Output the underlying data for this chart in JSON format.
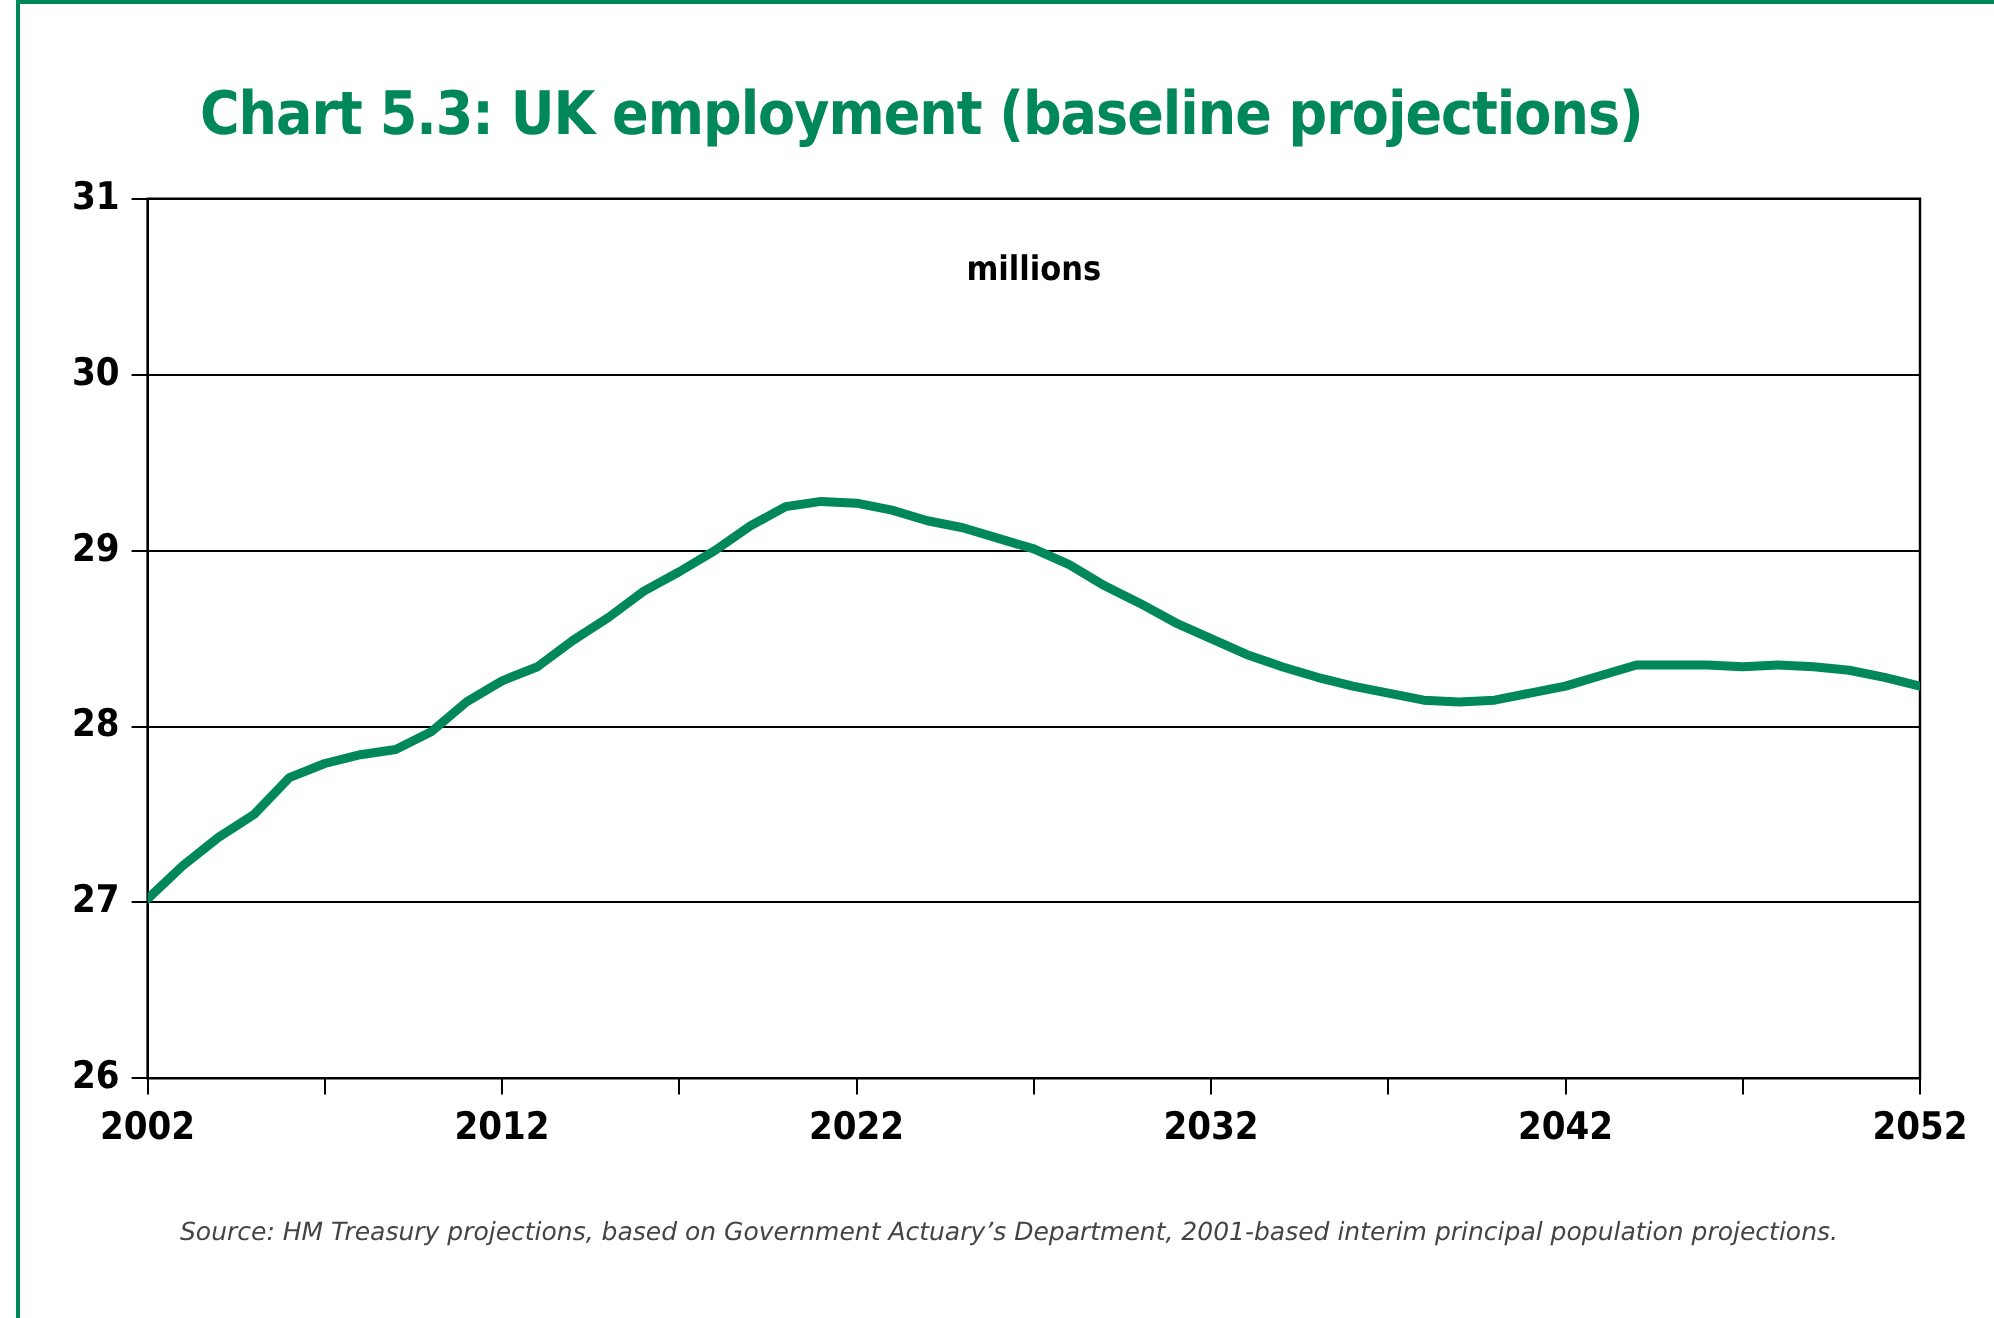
{
  "chart_data": {
    "type": "line",
    "title": "Chart 5.3: UK employment (baseline projections)",
    "ylabel": "millions",
    "annotations": [
      "Source: HM Treasury projections, based on Government Actuary’s Department, 2001-based interim principal population projections."
    ],
    "x": [
      2002,
      2003,
      2004,
      2005,
      2006,
      2007,
      2008,
      2009,
      2010,
      2011,
      2012,
      2013,
      2014,
      2015,
      2016,
      2017,
      2018,
      2019,
      2020,
      2021,
      2022,
      2023,
      2024,
      2025,
      2026,
      2027,
      2028,
      2029,
      2030,
      2031,
      2032,
      2033,
      2034,
      2035,
      2036,
      2037,
      2038,
      2039,
      2040,
      2041,
      2042,
      2043,
      2044,
      2045,
      2046,
      2047,
      2048,
      2049,
      2050,
      2051,
      2052
    ],
    "series": [
      {
        "color": "#00875a",
        "values": [
          27.02,
          27.21,
          27.37,
          27.5,
          27.71,
          27.79,
          27.84,
          27.87,
          27.97,
          28.14,
          28.26,
          28.34,
          28.49,
          28.62,
          28.77,
          28.88,
          29.0,
          29.14,
          29.25,
          29.28,
          29.27,
          29.23,
          29.17,
          29.13,
          29.07,
          29.01,
          28.92,
          28.8,
          28.7,
          28.59,
          28.5,
          28.41,
          28.34,
          28.28,
          28.23,
          28.19,
          28.15,
          28.14,
          28.15,
          28.19,
          28.23,
          28.29,
          28.35,
          28.35,
          28.35,
          28.34,
          28.35,
          28.34,
          28.32,
          28.28,
          28.23
        ]
      }
    ],
    "xlim": [
      2002,
      2052
    ],
    "xticks": [
      2002,
      {
        "value": 2007,
        "label": null
      },
      2012,
      {
        "value": 2017,
        "label": null
      },
      2022,
      {
        "value": 2027,
        "label": null
      },
      2032,
      {
        "value": 2037,
        "label": null
      },
      2042,
      {
        "value": 2047,
        "label": null
      },
      2052
    ],
    "ylim": [
      26,
      31
    ],
    "yticks": [
      26,
      27,
      28,
      29,
      30,
      31
    ],
    "grid": "y",
    "legend": false,
    "marker": "none",
    "line_style": "solid"
  }
}
